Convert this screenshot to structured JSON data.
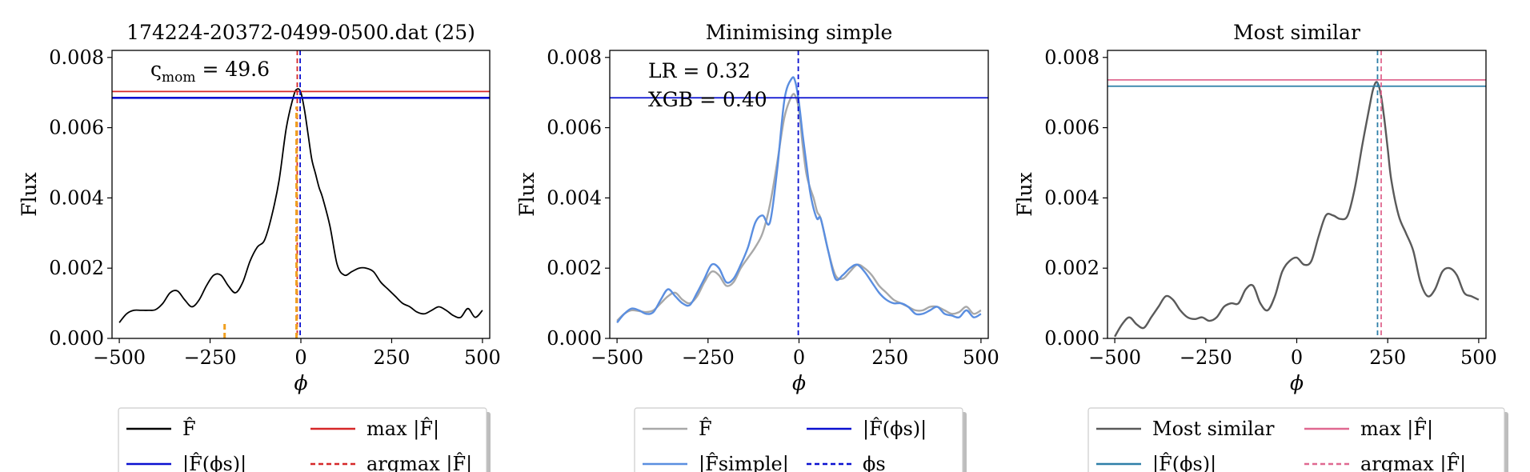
{
  "chart_data": [
    {
      "type": "line",
      "title": "174224-20372-0499-0500.dat (25)",
      "xlabel": "ϕ",
      "ylabel": "Flux",
      "xlim": [
        -520,
        520
      ],
      "ylim": [
        0,
        0.0082
      ],
      "xticks": [
        "−500",
        "−250",
        "0",
        "250",
        "500"
      ],
      "xtick_values": [
        -500,
        -250,
        0,
        250,
        500
      ],
      "yticks": [
        "0.000",
        "0.002",
        "0.004",
        "0.006",
        "0.008"
      ],
      "ytick_values": [
        0,
        0.002,
        0.004,
        0.006,
        0.008
      ],
      "annotation": "ς",
      "annotation_sub": "mom",
      "annotation_value": " = 49.6",
      "series": [
        {
          "role": "F_hat",
          "color": "#000000",
          "x": [
            -500,
            -480,
            -460,
            -440,
            -420,
            -400,
            -380,
            -360,
            -340,
            -320,
            -300,
            -280,
            -260,
            -240,
            -220,
            -200,
            -180,
            -160,
            -140,
            -120,
            -100,
            -80,
            -60,
            -40,
            -20,
            -10,
            0,
            10,
            20,
            30,
            40,
            50,
            60,
            80,
            100,
            120,
            140,
            160,
            180,
            200,
            220,
            240,
            260,
            280,
            300,
            320,
            340,
            360,
            380,
            400,
            420,
            440,
            460,
            480,
            500
          ],
          "y": [
            0.00045,
            0.0007,
            0.0008,
            0.0008,
            0.0008,
            0.00082,
            0.001,
            0.0013,
            0.00135,
            0.0011,
            0.0009,
            0.0011,
            0.0015,
            0.0018,
            0.0018,
            0.0015,
            0.0013,
            0.0016,
            0.0022,
            0.0026,
            0.0028,
            0.0035,
            0.0045,
            0.006,
            0.0069,
            0.0071,
            0.007,
            0.0065,
            0.0058,
            0.0051,
            0.0047,
            0.0043,
            0.004,
            0.0032,
            0.0021,
            0.0018,
            0.0019,
            0.002,
            0.002,
            0.0019,
            0.0016,
            0.0014,
            0.0012,
            0.001,
            0.0009,
            0.00075,
            0.0007,
            0.0008,
            0.0009,
            0.0008,
            0.00065,
            0.0006,
            0.00085,
            0.0006,
            0.0008
          ]
        },
        {
          "role": "max_F_hat",
          "color": "#d62728",
          "hline": 0.00703
        },
        {
          "role": "F_hat_phi_s",
          "color": "#0a10d0",
          "hline": 0.00685
        },
        {
          "role": "argmax",
          "color": "#d62728",
          "vline": -10
        },
        {
          "role": "phi_s",
          "color": "#0a10d0",
          "vline": -2
        },
        {
          "role": "orange_marks",
          "color": "#f0a020",
          "vsegments": [
            [
              -210,
              0.0,
              0.00045
            ],
            [
              -12,
              0.0,
              0.0066
            ]
          ]
        }
      ],
      "legend": {
        "entries": [
          {
            "label": "F̂",
            "color": "#000000",
            "style": "solid"
          },
          {
            "label": "max |F̂|",
            "color": "#d62728",
            "style": "solid"
          },
          {
            "label": "|F̂(ϕs)|",
            "color": "#0a10d0",
            "style": "solid"
          },
          {
            "label": "argmax |F̂|",
            "color": "#d62728",
            "style": "dashed"
          }
        ]
      }
    },
    {
      "type": "line",
      "title": "Minimising simple",
      "xlabel": "ϕ",
      "ylabel": "Flux",
      "xlim": [
        -520,
        520
      ],
      "ylim": [
        0,
        0.0082
      ],
      "xticks": [
        "−500",
        "−250",
        "0",
        "250",
        "500"
      ],
      "xtick_values": [
        -500,
        -250,
        0,
        250,
        500
      ],
      "yticks": [
        "0.000",
        "0.002",
        "0.004",
        "0.006",
        "0.008"
      ],
      "ytick_values": [
        0,
        0.002,
        0.004,
        0.006,
        0.008
      ],
      "annotations": [
        "LR = 0.32",
        "XGB = 0.40"
      ],
      "series": [
        {
          "role": "F_hat",
          "color": "#a8a8a8",
          "x": [
            -500,
            -480,
            -460,
            -440,
            -420,
            -400,
            -380,
            -360,
            -340,
            -320,
            -300,
            -280,
            -260,
            -240,
            -220,
            -200,
            -180,
            -160,
            -140,
            -120,
            -100,
            -80,
            -60,
            -40,
            -20,
            -10,
            0,
            10,
            20,
            30,
            40,
            50,
            60,
            80,
            100,
            120,
            140,
            160,
            180,
            200,
            220,
            240,
            260,
            280,
            300,
            320,
            340,
            360,
            380,
            400,
            420,
            440,
            460,
            480,
            500
          ],
          "y": [
            0.0005,
            0.0007,
            0.0008,
            0.00078,
            0.00075,
            0.0008,
            0.001,
            0.0012,
            0.0013,
            0.0011,
            0.001,
            0.0012,
            0.0016,
            0.0019,
            0.0018,
            0.0015,
            0.0016,
            0.002,
            0.0023,
            0.0026,
            0.003,
            0.0038,
            0.005,
            0.0063,
            0.0069,
            0.0069,
            0.0065,
            0.0055,
            0.0047,
            0.0043,
            0.004,
            0.0036,
            0.0034,
            0.0025,
            0.0018,
            0.0017,
            0.0019,
            0.0021,
            0.002,
            0.0018,
            0.0015,
            0.0013,
            0.0011,
            0.001,
            0.0009,
            0.0008,
            0.0008,
            0.0009,
            0.0009,
            0.0008,
            0.0007,
            0.00075,
            0.0009,
            0.0007,
            0.0008
          ]
        },
        {
          "role": "F_simple",
          "color": "#5a8ee0",
          "x": [
            -500,
            -480,
            -460,
            -440,
            -420,
            -400,
            -380,
            -360,
            -340,
            -320,
            -300,
            -280,
            -260,
            -240,
            -220,
            -200,
            -180,
            -160,
            -140,
            -120,
            -100,
            -80,
            -60,
            -40,
            -20,
            -10,
            0,
            10,
            20,
            30,
            40,
            50,
            60,
            80,
            100,
            120,
            140,
            160,
            180,
            200,
            220,
            240,
            260,
            280,
            300,
            320,
            340,
            360,
            380,
            400,
            420,
            440,
            460,
            480,
            500
          ],
          "y": [
            0.00045,
            0.0007,
            0.00085,
            0.0008,
            0.0007,
            0.00075,
            0.0011,
            0.0014,
            0.0012,
            0.001,
            0.00095,
            0.0013,
            0.0017,
            0.0021,
            0.002,
            0.0016,
            0.0017,
            0.0021,
            0.0026,
            0.0033,
            0.0035,
            0.0033,
            0.0048,
            0.0068,
            0.0074,
            0.0073,
            0.0067,
            0.0058,
            0.005,
            0.0042,
            0.0037,
            0.0034,
            0.0034,
            0.0025,
            0.0017,
            0.0018,
            0.002,
            0.0021,
            0.0019,
            0.0016,
            0.0013,
            0.0011,
            0.001,
            0.001,
            0.0009,
            0.0007,
            0.0007,
            0.0008,
            0.0009,
            0.0007,
            0.00065,
            0.0006,
            0.0008,
            0.0006,
            0.0007
          ]
        },
        {
          "role": "F_hat_phi_s",
          "color": "#0a10d0",
          "hline": 0.00685
        },
        {
          "role": "phi_s",
          "color": "#0a10d0",
          "vline": -2
        }
      ],
      "legend": {
        "entries": [
          {
            "label": "F̂",
            "color": "#a8a8a8",
            "style": "solid"
          },
          {
            "label": "|F̂(ϕs)|",
            "color": "#0a10d0",
            "style": "solid"
          },
          {
            "label": "|F̂simple|",
            "color": "#5a8ee0",
            "style": "solid"
          },
          {
            "label": "ϕs",
            "color": "#0a10d0",
            "style": "dashed"
          }
        ]
      }
    },
    {
      "type": "line",
      "title": "Most similar",
      "xlabel": "ϕ",
      "ylabel": "Flux",
      "xlim": [
        -520,
        520
      ],
      "ylim": [
        0,
        0.0082
      ],
      "xticks": [
        "−500",
        "−250",
        "0",
        "250",
        "500"
      ],
      "xtick_values": [
        -500,
        -250,
        0,
        250,
        500
      ],
      "yticks": [
        "0.000",
        "0.002",
        "0.004",
        "0.006",
        "0.008"
      ],
      "ytick_values": [
        0,
        0.002,
        0.004,
        0.006,
        0.008
      ],
      "series": [
        {
          "role": "most_similar",
          "color": "#5a5a5a",
          "x": [
            -500,
            -480,
            -460,
            -440,
            -420,
            -400,
            -380,
            -360,
            -340,
            -320,
            -300,
            -280,
            -260,
            -240,
            -220,
            -200,
            -180,
            -160,
            -140,
            -120,
            -100,
            -80,
            -60,
            -40,
            -20,
            0,
            20,
            40,
            60,
            80,
            100,
            120,
            140,
            160,
            180,
            200,
            210,
            220,
            230,
            240,
            250,
            260,
            280,
            300,
            320,
            340,
            360,
            380,
            400,
            420,
            440,
            460,
            480,
            500
          ],
          "y": [
            5e-05,
            0.0004,
            0.0006,
            0.0004,
            0.0003,
            0.0006,
            0.0009,
            0.0012,
            0.0011,
            0.0008,
            0.0006,
            0.00055,
            0.0006,
            0.0005,
            0.0006,
            0.0009,
            0.001,
            0.001,
            0.0014,
            0.0015,
            0.001,
            0.0008,
            0.0012,
            0.0019,
            0.0022,
            0.0023,
            0.0021,
            0.0022,
            0.0029,
            0.0035,
            0.0035,
            0.0034,
            0.0035,
            0.0043,
            0.0055,
            0.0066,
            0.0071,
            0.0073,
            0.007,
            0.0063,
            0.0054,
            0.0045,
            0.0035,
            0.003,
            0.0025,
            0.0016,
            0.0012,
            0.0014,
            0.0019,
            0.002,
            0.0018,
            0.0013,
            0.0012,
            0.0011
          ]
        },
        {
          "role": "max_F_hat",
          "color": "#e06890",
          "hline": 0.00736
        },
        {
          "role": "F_hat_phi_s",
          "color": "#2e7fa8",
          "hline": 0.00718
        },
        {
          "role": "argmax",
          "color": "#e06890",
          "vline": 232
        },
        {
          "role": "phi_s",
          "color": "#2e7fa8",
          "vline": 222
        }
      ],
      "legend": {
        "entries": [
          {
            "label": "Most similar",
            "color": "#5a5a5a",
            "style": "solid"
          },
          {
            "label": "max |F̂|",
            "color": "#e06890",
            "style": "solid"
          },
          {
            "label": "|F̂(ϕs)|",
            "color": "#2e7fa8",
            "style": "solid"
          },
          {
            "label": "argmax |F̂|",
            "color": "#e06890",
            "style": "dashed"
          }
        ]
      }
    }
  ]
}
